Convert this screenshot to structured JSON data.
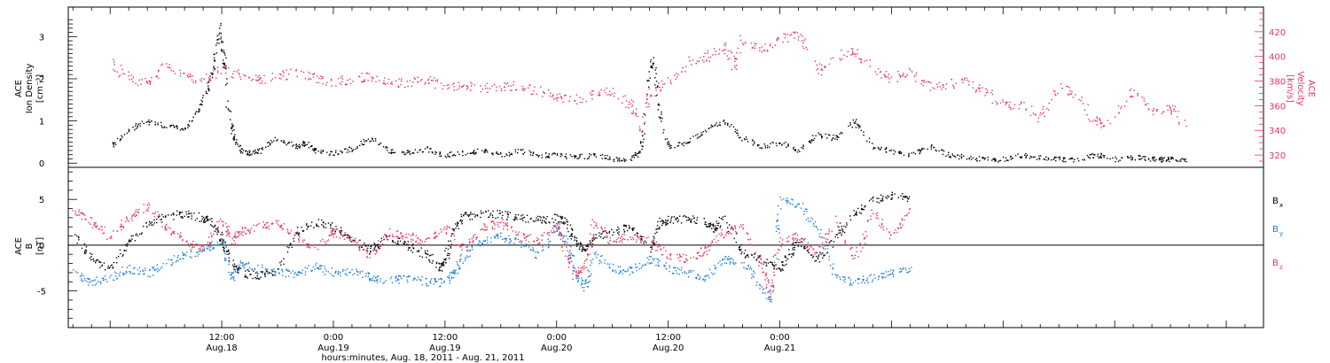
{
  "chart_data": [
    {
      "type": "scatter",
      "panel": "top",
      "title": "",
      "ylabel": [
        "ACE",
        "Ion Density",
        "[cm⁻³]"
      ],
      "ylabel_right": [
        "ACE",
        "Velocity",
        "[km/s]"
      ],
      "ylim": [
        -0.1,
        3.7
      ],
      "ylim_right": [
        310,
        440
      ],
      "yticks": [
        0,
        1,
        2,
        3
      ],
      "yticks_right": [
        320,
        340,
        360,
        380,
        400,
        420
      ],
      "colors": {
        "density": "#000000",
        "velocity": "#e8325f"
      },
      "series": [
        {
          "axis": "left",
          "color": "#000000",
          "x": [
            0,
            2,
            4,
            6,
            8,
            9.5,
            10.5,
            11.2,
            11.7,
            12.2,
            12.6,
            13.2,
            14,
            15,
            16,
            18,
            20,
            21,
            22,
            24,
            26,
            28,
            30,
            32,
            34,
            36,
            38,
            40,
            42,
            44,
            46,
            48,
            50,
            52,
            54,
            56,
            57,
            57.8,
            58.3,
            59,
            60,
            62,
            64,
            66,
            68,
            70,
            72,
            74,
            76,
            78,
            80,
            82,
            84,
            86,
            88,
            90,
            92,
            94,
            96,
            98,
            100,
            102,
            104,
            106,
            108,
            110,
            112,
            113,
            114,
            116
          ],
          "y": [
            0.4,
            0.8,
            1.0,
            0.9,
            0.8,
            1.3,
            1.8,
            2.4,
            3.3,
            2.5,
            1.4,
            0.7,
            0.3,
            0.25,
            0.3,
            0.6,
            0.4,
            0.5,
            0.3,
            0.25,
            0.35,
            0.6,
            0.3,
            0.25,
            0.35,
            0.2,
            0.25,
            0.3,
            0.2,
            0.3,
            0.2,
            0.2,
            0.15,
            0.2,
            0.1,
            0.1,
            0.3,
            1.8,
            2.5,
            1.2,
            0.4,
            0.5,
            0.8,
            1.0,
            0.6,
            0.4,
            0.5,
            0.3,
            0.7,
            0.6,
            1.0,
            0.4,
            0.3,
            0.2,
            0.4,
            0.2,
            0.15,
            0.1,
            0.1,
            0.2,
            0.15,
            0.1,
            0.1,
            0.2,
            0.1,
            0.15,
            0.1,
            0.1,
            0.1,
            0.1
          ]
        },
        {
          "axis": "right",
          "color": "#e8325f",
          "x": [
            0,
            2,
            4,
            6,
            8,
            10,
            12,
            14,
            16,
            18,
            20,
            22,
            24,
            26,
            28,
            30,
            32,
            34,
            36,
            38,
            40,
            42,
            44,
            46,
            48,
            50,
            52,
            54,
            56,
            57,
            58,
            60,
            62,
            64,
            66,
            67,
            68,
            70,
            72,
            74,
            76,
            78,
            80,
            82,
            84,
            86,
            88,
            90,
            92,
            94,
            96,
            98,
            100,
            102,
            104,
            106,
            108,
            110,
            112,
            114,
            116
          ],
          "y": [
            395,
            382,
            378,
            392,
            384,
            380,
            390,
            385,
            382,
            384,
            388,
            383,
            379,
            382,
            385,
            378,
            379,
            381,
            377,
            376,
            375,
            375,
            376,
            372,
            368,
            365,
            370,
            372,
            360,
            342,
            370,
            380,
            395,
            400,
            408,
            392,
            415,
            405,
            415,
            418,
            388,
            400,
            405,
            390,
            382,
            388,
            376,
            378,
            380,
            372,
            360,
            362,
            350,
            376,
            368,
            345,
            350,
            372,
            355,
            360,
            340
          ]
        }
      ]
    },
    {
      "type": "scatter",
      "panel": "bottom",
      "title": "",
      "ylabel": [
        "ACE",
        "B",
        "[nT]"
      ],
      "ylim": [
        -9,
        8.5
      ],
      "yticks": [
        -5,
        0,
        5
      ],
      "xlabel": "hours:minutes, Aug. 18, 2011 - Aug. 21, 2011",
      "xlim": [
        -4.5,
        124
      ],
      "xticks": [
        {
          "x": 12,
          "label": "12:00",
          "label2": "Aug.18"
        },
        {
          "x": 24,
          "label": "0:00",
          "label2": "Aug.19"
        },
        {
          "x": 36,
          "label": "12:00",
          "label2": "Aug.19"
        },
        {
          "x": 48,
          "label": "0:00",
          "label2": "Aug.20"
        },
        {
          "x": 60,
          "label": "12:00",
          "label2": "Aug.20"
        },
        {
          "x": 72,
          "label": "0:00",
          "label2": "Aug.21"
        }
      ],
      "legend": [
        "B",
        "B",
        "B"
      ],
      "legend_subscripts": [
        "x",
        "y",
        "z"
      ],
      "legend_placement": "right",
      "series": [
        {
          "name": "Bx",
          "color": "#000000",
          "x": [
            -4,
            -2,
            0,
            2,
            4,
            6,
            8,
            10,
            11,
            12,
            13,
            14,
            16,
            18,
            20,
            22,
            24,
            26,
            28,
            30,
            32,
            34,
            35.5,
            36,
            37,
            38,
            40,
            42,
            44,
            46,
            48,
            49,
            50,
            51,
            52,
            54,
            56,
            58,
            59,
            60,
            62,
            64,
            65,
            66,
            68,
            70,
            72,
            73,
            74,
            76,
            78,
            80,
            82,
            84,
            86
          ],
          "y": [
            1.5,
            -1.5,
            -2.5,
            0.5,
            2.5,
            3.2,
            3.5,
            3.0,
            2.5,
            0.5,
            -2.0,
            -3.0,
            -3.2,
            -2.8,
            1.5,
            2.5,
            2.0,
            0.5,
            -0.5,
            1.0,
            0.0,
            -1.0,
            -2.5,
            -1.5,
            2.0,
            3.2,
            3.5,
            3.4,
            3.0,
            2.8,
            3.0,
            2.5,
            0.5,
            -0.5,
            1.0,
            1.5,
            2.0,
            -0.5,
            2.5,
            2.8,
            3.0,
            2.5,
            1.8,
            3.2,
            -0.8,
            -1.5,
            -2.5,
            -1.0,
            0.5,
            -1.5,
            1.0,
            3.5,
            5.0,
            5.5,
            5.2
          ]
        },
        {
          "name": "By",
          "color": "#1e7ed6",
          "x": [
            -4,
            -2,
            0,
            2,
            4,
            6,
            8,
            10,
            12,
            13,
            14,
            16,
            18,
            20,
            22,
            24,
            26,
            28,
            30,
            32,
            34,
            36,
            37,
            38,
            40,
            42,
            44,
            46,
            48,
            49,
            50,
            51,
            52,
            54,
            56,
            58,
            60,
            62,
            64,
            66,
            68,
            70,
            71,
            72,
            74,
            76,
            78,
            80,
            82,
            84,
            86
          ],
          "y": [
            -3.0,
            -4.0,
            -3.5,
            -2.5,
            -3.0,
            -2.0,
            -1.0,
            -0.5,
            0.5,
            -3.5,
            -2.0,
            -2.5,
            -2.8,
            -3.2,
            -2.2,
            -3.0,
            -2.8,
            -3.5,
            -3.8,
            -3.5,
            -4.0,
            -4.0,
            -3.0,
            -1.0,
            0.5,
            1.0,
            0.5,
            -1.0,
            2.0,
            0.5,
            -3.0,
            -4.5,
            -1.0,
            -2.5,
            -2.8,
            -1.5,
            -2.5,
            -3.0,
            -3.5,
            -1.5,
            -1.8,
            -4.5,
            -6.0,
            5.0,
            4.5,
            2.0,
            -3.5,
            -4.0,
            -3.5,
            -3.0,
            -2.5
          ]
        },
        {
          "name": "Bz",
          "color": "#e8325f",
          "x": [
            -4,
            -2,
            0,
            2,
            4,
            6,
            8,
            10,
            12,
            13,
            14,
            16,
            18,
            20,
            22,
            24,
            26,
            28,
            30,
            32,
            34,
            36,
            38,
            40,
            42,
            44,
            46,
            48,
            49,
            50,
            51,
            52,
            54,
            56,
            58,
            60,
            62,
            64,
            66,
            68,
            70,
            71,
            72,
            74,
            76,
            78,
            80,
            82,
            84,
            86
          ],
          "y": [
            4.0,
            2.5,
            1.0,
            3.0,
            4.5,
            2.0,
            0.5,
            -0.5,
            3.0,
            0.5,
            1.5,
            2.0,
            2.5,
            1.0,
            -0.5,
            1.5,
            0.5,
            -1.0,
            1.5,
            1.0,
            0.5,
            2.0,
            -0.5,
            2.0,
            2.5,
            1.0,
            0.5,
            2.2,
            -1.0,
            -3.5,
            -2.0,
            2.5,
            0.5,
            1.0,
            0.5,
            -1.0,
            -1.5,
            -0.5,
            1.5,
            2.0,
            -2.0,
            -5.5,
            0.5,
            1.0,
            -1.0,
            3.0,
            -1.5,
            3.5,
            1.0,
            4.0
          ]
        }
      ]
    }
  ]
}
